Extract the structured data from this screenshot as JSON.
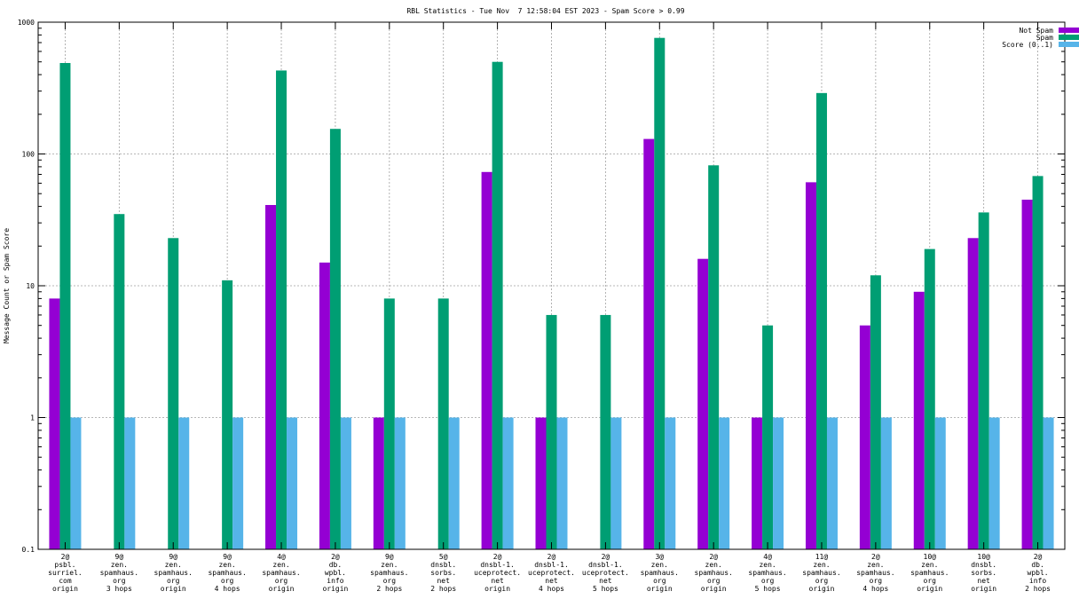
{
  "chart_data": {
    "type": "bar",
    "title": "RBL Statistics - Tue Nov  7 12:58:04 EST 2023 - Spam Score > 0.99",
    "xlabel": "",
    "ylabel": "Message Count or Spam Score",
    "yscale": "log",
    "ylim": [
      0.1,
      1000
    ],
    "yticks": [
      0.1,
      1,
      10,
      100,
      1000
    ],
    "ytick_labels": [
      "0.1",
      "1",
      "10",
      "100",
      "1000"
    ],
    "grid": true,
    "legend_position": "top-right",
    "categories": [
      [
        "2@",
        "psbl.",
        "surriel.",
        "com",
        "origin"
      ],
      [
        "9@",
        "zen.",
        "spamhaus.",
        "org",
        "3 hops"
      ],
      [
        "9@",
        "zen.",
        "spamhaus.",
        "org",
        "origin"
      ],
      [
        "9@",
        "zen.",
        "spamhaus.",
        "org",
        "4 hops"
      ],
      [
        "4@",
        "zen.",
        "spamhaus.",
        "org",
        "origin"
      ],
      [
        "2@",
        "db.",
        "wpbl.",
        "info",
        "origin"
      ],
      [
        "9@",
        "zen.",
        "spamhaus.",
        "org",
        "2 hops"
      ],
      [
        "5@",
        "dnsbl.",
        "sorbs.",
        "net",
        "2 hops"
      ],
      [
        "2@",
        "dnsbl-1.",
        "uceprotect.",
        "net",
        "origin"
      ],
      [
        "2@",
        "dnsbl-1.",
        "uceprotect.",
        "net",
        "4 hops"
      ],
      [
        "2@",
        "dnsbl-1.",
        "uceprotect.",
        "net",
        "5 hops"
      ],
      [
        "3@",
        "zen.",
        "spamhaus.",
        "org",
        "origin"
      ],
      [
        "2@",
        "zen.",
        "spamhaus.",
        "org",
        "origin"
      ],
      [
        "4@",
        "zen.",
        "spamhaus.",
        "org",
        "5 hops"
      ],
      [
        "11@",
        "zen.",
        "spamhaus.",
        "org",
        "origin"
      ],
      [
        "2@",
        "zen.",
        "spamhaus.",
        "org",
        "4 hops"
      ],
      [
        "10@",
        "zen.",
        "spamhaus.",
        "org",
        "origin"
      ],
      [
        "10@",
        "dnsbl.",
        "sorbs.",
        "net",
        "origin"
      ],
      [
        "2@",
        "db.",
        "wpbl.",
        "info",
        "2 hops"
      ]
    ],
    "series": [
      {
        "name": "Not Spam",
        "color": "#9400d3",
        "values": [
          8,
          null,
          null,
          null,
          41,
          15,
          1,
          null,
          73,
          1,
          null,
          130,
          16,
          1,
          61,
          5,
          9,
          23,
          45
        ]
      },
      {
        "name": "Spam",
        "color": "#009e73",
        "values": [
          490,
          35,
          23,
          11,
          430,
          155,
          8,
          8,
          500,
          6,
          6,
          760,
          82,
          5,
          290,
          12,
          19,
          36,
          68
        ]
      },
      {
        "name": "Score (0..1)",
        "color": "#56b4e9",
        "values": [
          1,
          1,
          1,
          1,
          1,
          1,
          1,
          1,
          1,
          1,
          1,
          1,
          1,
          1,
          1,
          1,
          1,
          1,
          1
        ]
      }
    ]
  }
}
